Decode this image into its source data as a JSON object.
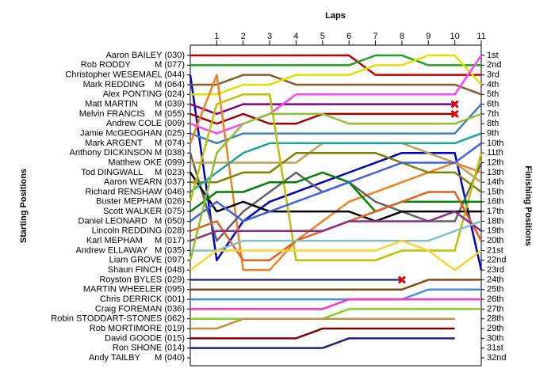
{
  "chart_data": {
    "type": "line",
    "title": "Laps",
    "y_label": "Starting Positions",
    "y2_label": "Finishing Positions",
    "x": [
      0,
      1,
      2,
      3,
      4,
      5,
      6,
      7,
      8,
      9,
      10,
      11
    ],
    "xlim": [
      0,
      11
    ],
    "xticks": [
      1,
      2,
      3,
      4,
      5,
      6,
      7,
      8,
      9,
      10,
      11
    ],
    "ylim": [
      1,
      32
    ],
    "inverted_y": true,
    "position_labels": [
      "1st",
      "2nd",
      "3rd",
      "4th",
      "5th",
      "6th",
      "7th",
      "8th",
      "9th",
      "10th",
      "11th",
      "12th",
      "13th",
      "14th",
      "15th",
      "16th",
      "17th",
      "18th",
      "19th",
      "20th",
      "21st",
      "22nd",
      "23rd",
      "24th",
      "25th",
      "26th",
      "27th",
      "28th",
      "29th",
      "30th",
      "31st",
      "32nd"
    ],
    "series": [
      {
        "name": "Aaron BAILEY (030)",
        "color": "#c00000",
        "values": [
          1,
          1,
          1,
          1,
          1,
          1,
          1,
          3,
          3,
          3,
          3,
          3
        ]
      },
      {
        "name": "Rob RODDY          M (077)",
        "color": "#20a020",
        "values": [
          2,
          2,
          2,
          2,
          2,
          2,
          2,
          1,
          1,
          2,
          2,
          2
        ]
      },
      {
        "name": "Christopher WESEMAEL (044)",
        "color": "#0000c0",
        "values": [
          3,
          22,
          18,
          16,
          15,
          14,
          13,
          12,
          11,
          11,
          11,
          23
        ]
      },
      {
        "name": "Mark REDDING    M (064)",
        "color": "#8b5a2b",
        "values": [
          4,
          4,
          3,
          3,
          4,
          4,
          4,
          4,
          4,
          4,
          4,
          5
        ]
      },
      {
        "name": "Alex PONTING (024)",
        "color": "#e0e000",
        "values": [
          5,
          5,
          4,
          4,
          3,
          3,
          3,
          2,
          2,
          1,
          1,
          4
        ]
      },
      {
        "name": "Matt MARTIN       M (039)",
        "color": "#800080",
        "retired": true,
        "values": [
          6,
          7,
          6,
          6,
          6,
          6,
          6,
          6,
          6,
          6,
          6,
          null
        ]
      },
      {
        "name": "Melvin FRANCIS    M (055)",
        "color": "#a00000",
        "retired": true,
        "values": [
          7,
          8,
          7,
          8,
          8,
          7,
          7,
          7,
          7,
          7,
          7,
          null
        ]
      },
      {
        "name": "Andrew COLE (009)",
        "color": "#ff40ff",
        "values": [
          8,
          9,
          8,
          7,
          5,
          5,
          5,
          5,
          5,
          5,
          5,
          1
        ]
      },
      {
        "name": "Jamie McGEOGHAN (025)",
        "color": "#4080c0",
        "values": [
          9,
          10,
          9,
          9,
          9,
          9,
          9,
          9,
          9,
          9,
          9,
          6
        ]
      },
      {
        "name": "Mark ARGENT     M (074)",
        "color": "#f08020",
        "values": [
          10,
          3,
          23,
          23,
          20,
          18,
          16,
          15,
          14,
          13,
          12,
          13
        ]
      },
      {
        "name": "Anthony DICKINSON M (038)",
        "color": "#606060",
        "values": [
          11,
          20,
          17,
          15,
          13,
          15,
          14,
          16,
          17,
          18,
          18,
          12
        ]
      },
      {
        "name": "Matthew OKE (099)",
        "color": "#c0a050",
        "values": [
          12,
          12,
          12,
          12,
          12,
          10,
          10,
          10,
          10,
          11,
          12,
          14
        ]
      },
      {
        "name": "Tod DINGWALL     M (023)",
        "color": "#000000",
        "values": [
          13,
          17,
          16,
          17,
          17,
          17,
          17,
          18,
          17,
          17,
          17,
          17
        ]
      },
      {
        "name": "Aaron WEARN (037)",
        "color": "#808000",
        "values": [
          14,
          14,
          13,
          13,
          11,
          11,
          11,
          11,
          12,
          13,
          13,
          15
        ]
      },
      {
        "name": "Richard RENSHAW (046)",
        "color": "#20a0a0",
        "values": [
          15,
          13,
          11,
          10,
          10,
          10,
          10,
          10,
          10,
          10,
          10,
          9
        ]
      },
      {
        "name": "Buster MEPHAM (026)",
        "color": "#c0c000",
        "values": [
          16,
          6,
          5,
          5,
          22,
          22,
          22,
          22,
          21,
          21,
          21,
          11
        ]
      },
      {
        "name": "Scott WALKER (075)",
        "color": "#008000",
        "values": [
          17,
          15,
          15,
          14,
          14,
          13,
          14,
          17,
          16,
          16,
          16,
          16
        ]
      },
      {
        "name": "Daniel LEONARD   M (050)",
        "color": "#4060e0",
        "values": [
          18,
          16,
          18,
          17,
          16,
          15,
          14,
          13,
          12,
          12,
          12,
          10
        ]
      },
      {
        "name": "Lincoln REDDING (028)",
        "color": "#e06020",
        "values": [
          19,
          18,
          22,
          22,
          20,
          19,
          18,
          17,
          16,
          15,
          15,
          20
        ]
      },
      {
        "name": "Karl MEPHAM     M (017)",
        "color": "#8a2a8a",
        "values": [
          20,
          19,
          19,
          19,
          19,
          19,
          18,
          18,
          18,
          18,
          17,
          19
        ]
      },
      {
        "name": "Andrew ELLAWAY   M (035)",
        "color": "#80c0c0",
        "values": [
          21,
          21,
          20,
          20,
          20,
          20,
          20,
          20,
          20,
          20,
          19,
          18
        ]
      },
      {
        "name": "Liam GROVE (097)",
        "color": "#90c030",
        "values": [
          22,
          11,
          8,
          7,
          7,
          7,
          8,
          8,
          8,
          8,
          8,
          7
        ]
      },
      {
        "name": "Shaun FINCH (048)",
        "color": "#ffd030",
        "values": [
          23,
          21,
          21,
          21,
          21,
          21,
          21,
          21,
          20,
          21,
          23,
          21
        ]
      },
      {
        "name": "Royston BYLES (029)",
        "color": "#303080",
        "retired": true,
        "values": [
          24,
          24,
          24,
          24,
          24,
          24,
          24,
          24,
          24,
          null,
          null,
          null
        ]
      },
      {
        "name": "MARTIN WHEELER (095)",
        "color": "#8b4513",
        "values": [
          25,
          25,
          25,
          25,
          25,
          25,
          25,
          25,
          25,
          24,
          24,
          24
        ]
      },
      {
        "name": "Chris DERRICK (001)",
        "color": "#4090e0",
        "values": [
          26,
          26,
          26,
          26,
          26,
          26,
          26,
          26,
          26,
          25,
          25,
          25
        ]
      },
      {
        "name": "Craig FOREMAN (036)",
        "color": "#ff30c0",
        "values": [
          27,
          27,
          27,
          27,
          27,
          27,
          26,
          26,
          26,
          26,
          26,
          26
        ]
      },
      {
        "name": "Robin STODDART-STONES (062)",
        "color": "#80d020",
        "values": [
          28,
          28,
          28,
          28,
          28,
          28,
          27,
          27,
          27,
          27,
          27,
          27
        ]
      },
      {
        "name": "Rob MORTIMORE (019)",
        "color": "#c09040",
        "values": [
          29,
          29,
          28,
          28,
          28,
          28,
          28,
          28,
          28,
          28,
          28,
          null
        ]
      },
      {
        "name": "David GOODE (015)",
        "color": "#800000",
        "values": [
          30,
          30,
          30,
          30,
          30,
          29,
          29,
          29,
          29,
          29,
          29,
          null
        ]
      },
      {
        "name": "Ron SHONE (014)",
        "color": "#202080",
        "values": [
          31,
          31,
          31,
          31,
          31,
          31,
          30,
          30,
          30,
          30,
          30,
          null
        ]
      },
      {
        "name": "Andy TAILBY      M (040)",
        "color": "#000000",
        "values": [
          32,
          null,
          null,
          null,
          null,
          null,
          null,
          null,
          null,
          null,
          null,
          null
        ]
      }
    ]
  }
}
